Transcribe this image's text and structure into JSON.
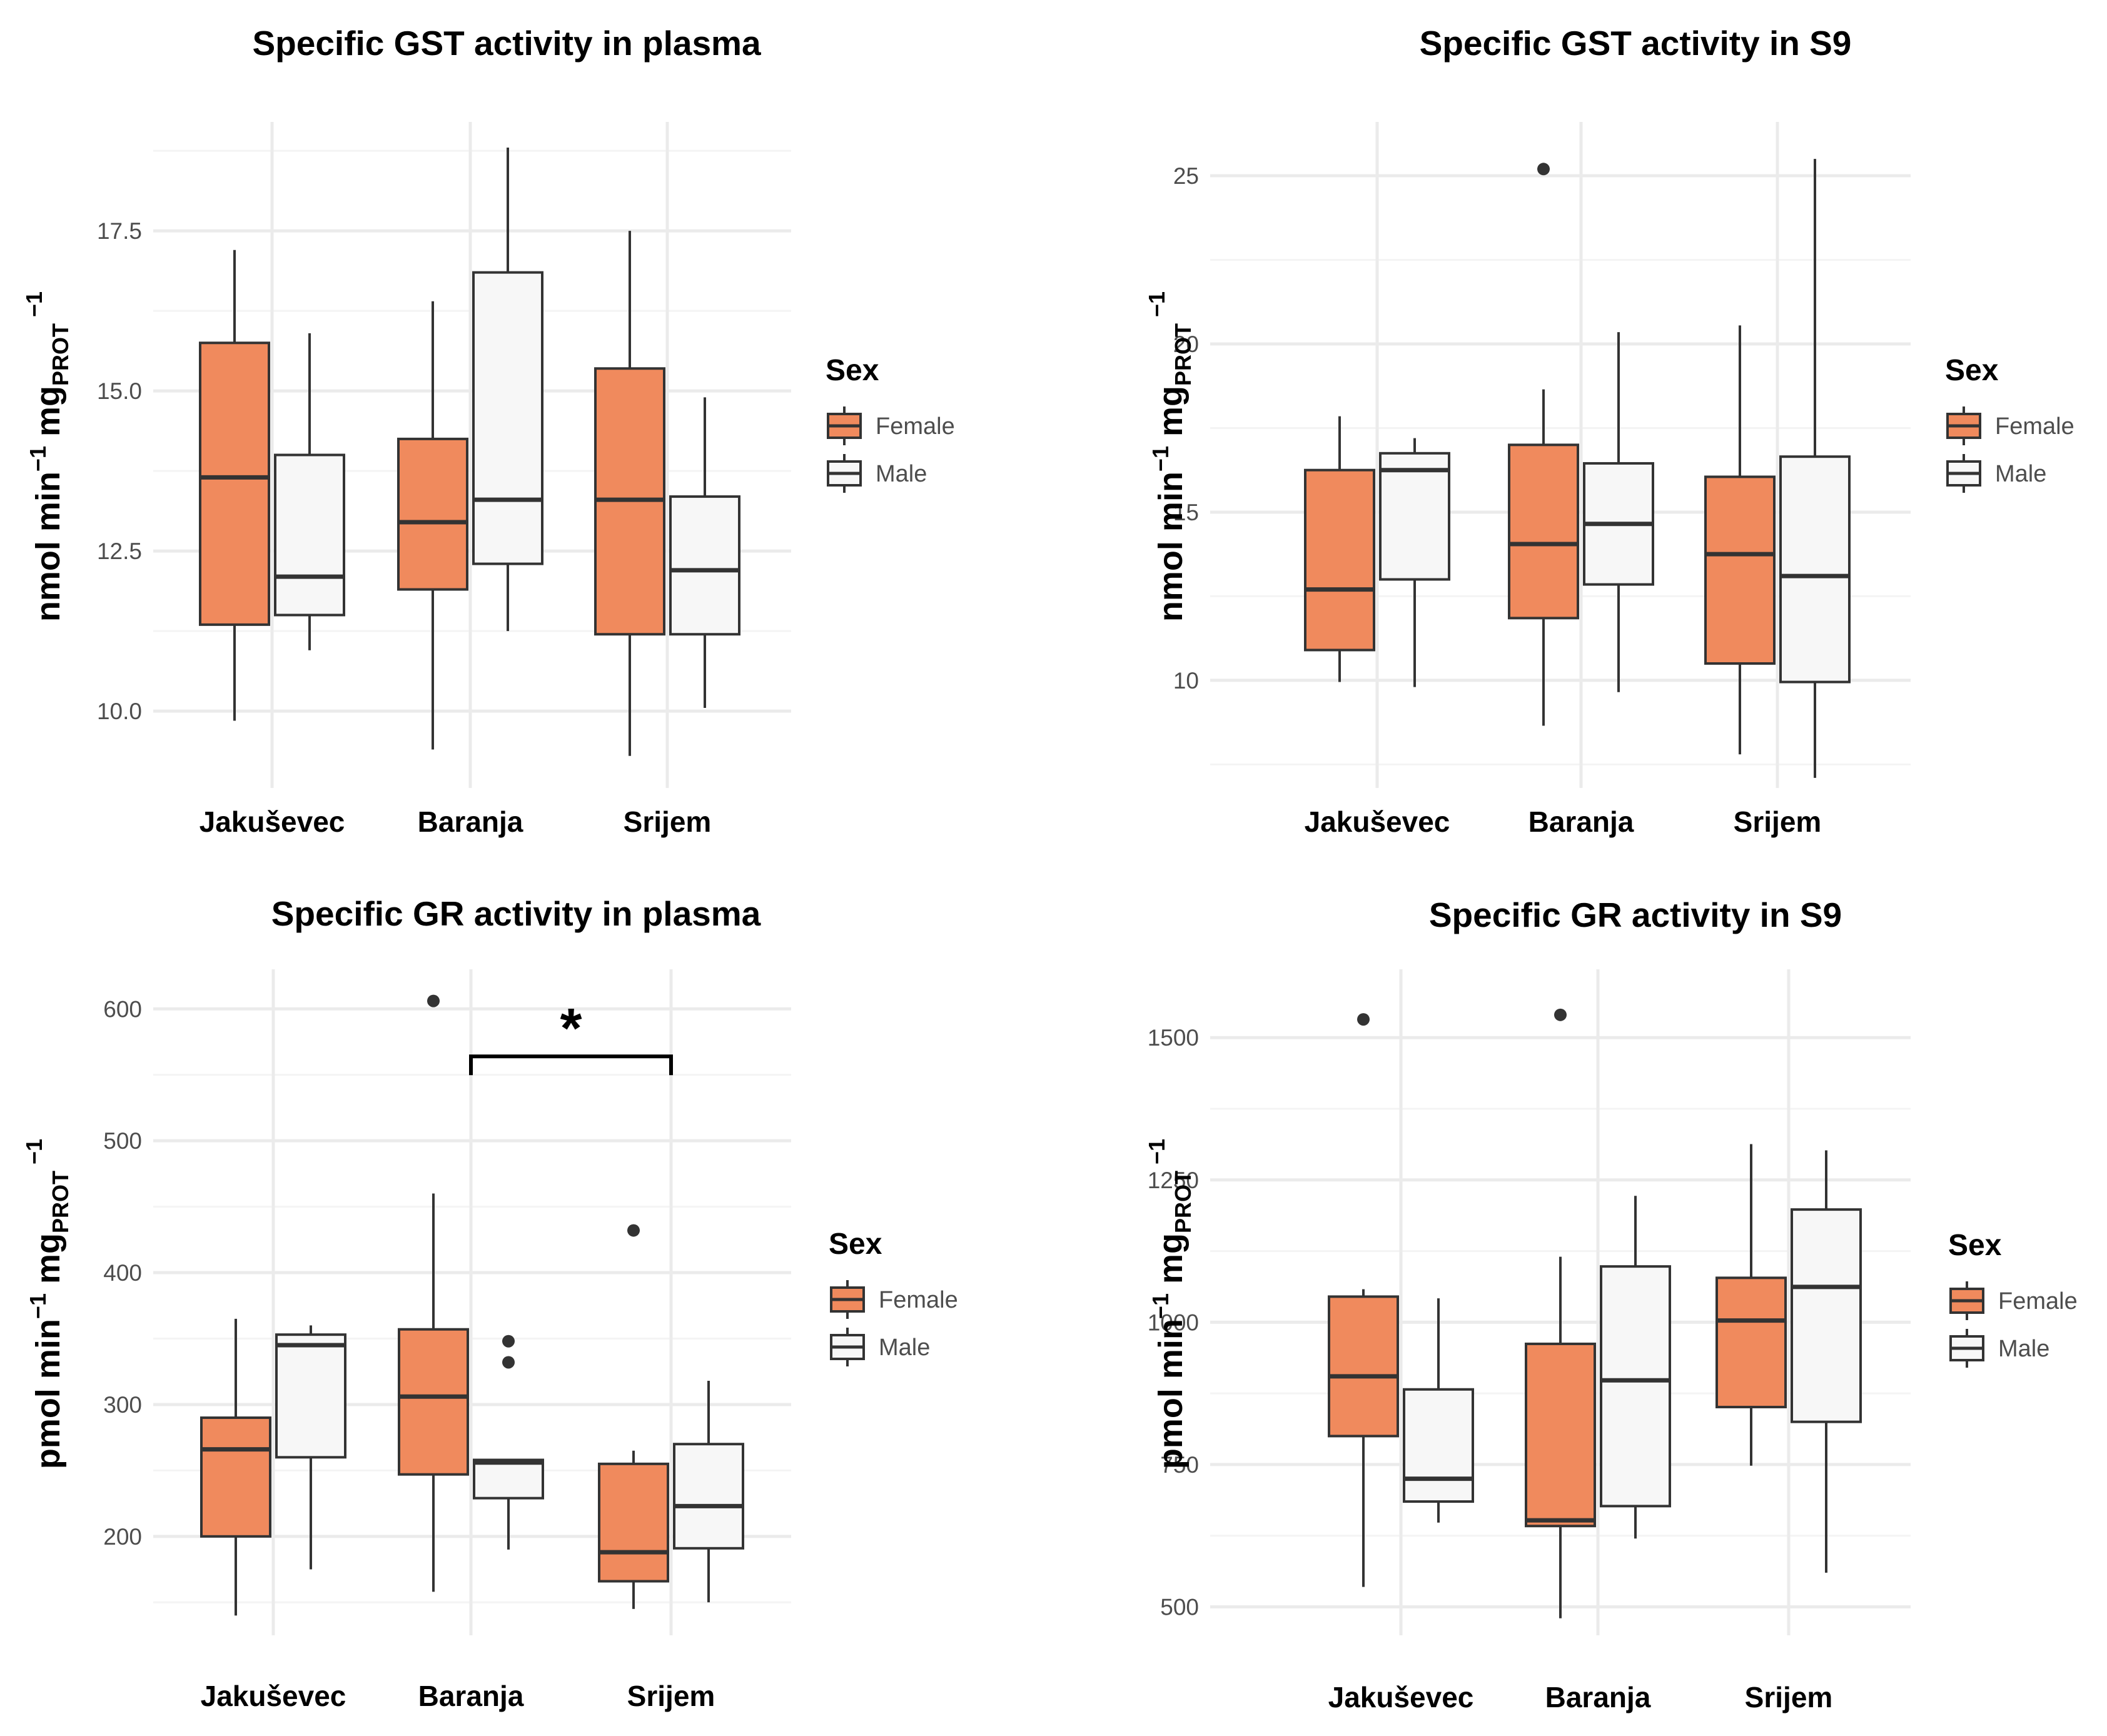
{
  "figure": {
    "legend_title": "Sex",
    "legend_items": [
      {
        "label": "Female",
        "fill": "#F08A5D"
      },
      {
        "label": "Male",
        "fill": "#F7F7F7"
      }
    ]
  },
  "colors": {
    "female": "#F08A5D",
    "male": "#F7F7F7",
    "stroke": "#333333",
    "grid_major": "#EBEBEB",
    "grid_minor": "#F4F4F4",
    "text": "#000000",
    "tick_text": "#4D4D4D"
  },
  "chart_data": [
    {
      "type": "boxplot",
      "title": "Specific GST activity in plasma",
      "ylabel_parts": {
        "base": "nmol min",
        "exp1": "−1",
        "mid": " mg",
        "sub": "PROT",
        "exp2": " −1"
      },
      "ylim": [
        8.8,
        19.2
      ],
      "yticks": [
        10.0,
        12.5,
        15.0,
        17.5
      ],
      "ytick_labels": [
        "10.0",
        "12.5",
        "15.0",
        "17.5"
      ],
      "categories": [
        "Jakuševec",
        "Baranja",
        "Srijem"
      ],
      "series": [
        {
          "name": "Female",
          "boxes": [
            {
              "min": 9.85,
              "q1": 11.35,
              "median": 13.65,
              "q3": 15.75,
              "max": 17.2,
              "outliers": []
            },
            {
              "min": 9.4,
              "q1": 11.9,
              "median": 12.95,
              "q3": 14.25,
              "max": 16.4,
              "outliers": []
            },
            {
              "min": 9.3,
              "q1": 11.2,
              "median": 13.3,
              "q3": 15.35,
              "max": 17.5,
              "outliers": []
            }
          ]
        },
        {
          "name": "Male",
          "boxes": [
            {
              "min": 10.95,
              "q1": 11.5,
              "median": 12.1,
              "q3": 14.0,
              "max": 15.9,
              "outliers": []
            },
            {
              "min": 11.25,
              "q1": 12.3,
              "median": 13.3,
              "q3": 16.85,
              "max": 18.8,
              "outliers": []
            },
            {
              "min": 10.05,
              "q1": 11.2,
              "median": 12.2,
              "q3": 13.35,
              "max": 14.9,
              "outliers": []
            }
          ]
        }
      ],
      "annotation": null
    },
    {
      "type": "boxplot",
      "title": "Specific GST activity in S9",
      "ylabel_parts": {
        "base": "nmol min",
        "exp1": "−1",
        "mid": " mg",
        "sub": "PROT",
        "exp2": " −1"
      },
      "ylim": [
        6.8,
        26.6
      ],
      "yticks": [
        10,
        15,
        20,
        25
      ],
      "ytick_labels": [
        "10",
        "15",
        "20",
        "25"
      ],
      "categories": [
        "Jakuševec",
        "Baranja",
        "Srijem"
      ],
      "series": [
        {
          "name": "Female",
          "boxes": [
            {
              "min": 9.95,
              "q1": 10.9,
              "median": 12.7,
              "q3": 16.25,
              "max": 17.85,
              "outliers": []
            },
            {
              "min": 8.65,
              "q1": 11.85,
              "median": 14.05,
              "q3": 17.0,
              "max": 18.65,
              "outliers": [
                25.2
              ]
            },
            {
              "min": 7.8,
              "q1": 10.5,
              "median": 13.75,
              "q3": 16.05,
              "max": 20.55,
              "outliers": []
            }
          ]
        },
        {
          "name": "Male",
          "boxes": [
            {
              "min": 9.8,
              "q1": 13.0,
              "median": 16.25,
              "q3": 16.75,
              "max": 17.2,
              "outliers": []
            },
            {
              "min": 9.65,
              "q1": 12.85,
              "median": 14.65,
              "q3": 16.45,
              "max": 20.35,
              "outliers": []
            },
            {
              "min": 7.1,
              "q1": 9.95,
              "median": 13.1,
              "q3": 16.65,
              "max": 25.5,
              "outliers": []
            }
          ]
        }
      ],
      "annotation": null
    },
    {
      "type": "boxplot",
      "title": "Specific GR activity in plasma",
      "ylabel_parts": {
        "base": "pmol min",
        "exp1": "−1",
        "mid": " mg",
        "sub": "PROT",
        "exp2": " −1"
      },
      "ylim": [
        125,
        630
      ],
      "yticks": [
        200,
        300,
        400,
        500,
        600
      ],
      "ytick_labels": [
        "200",
        "300",
        "400",
        "500",
        "600"
      ],
      "categories": [
        "Jakuševec",
        "Baranja",
        "Srijem"
      ],
      "series": [
        {
          "name": "Female",
          "boxes": [
            {
              "min": 140,
              "q1": 200,
              "median": 266,
              "q3": 290,
              "max": 365,
              "outliers": []
            },
            {
              "min": 158,
              "q1": 247,
              "median": 306,
              "q3": 357,
              "max": 460,
              "outliers": [
                606
              ]
            },
            {
              "min": 145,
              "q1": 166,
              "median": 188,
              "q3": 255,
              "max": 265,
              "outliers": [
                432
              ]
            }
          ]
        },
        {
          "name": "Male",
          "boxes": [
            {
              "min": 175,
              "q1": 260,
              "median": 345,
              "q3": 353,
              "max": 360,
              "outliers": []
            },
            {
              "min": 190,
              "q1": 229,
              "median": 256,
              "q3": 258,
              "max": 258,
              "outliers": [
                332,
                348
              ]
            },
            {
              "min": 150,
              "q1": 191,
              "median": 223,
              "q3": 270,
              "max": 318,
              "outliers": []
            }
          ]
        }
      ],
      "annotation": {
        "text": "*",
        "from_category": 1,
        "to_category": 2,
        "y": 564
      }
    },
    {
      "type": "boxplot",
      "title": "Specific GR activity in S9",
      "ylabel_parts": {
        "base": "pmol min",
        "exp1": "−1",
        "mid": " mg",
        "sub": "PROT",
        "exp2": " −1"
      },
      "ylim": [
        450,
        1620
      ],
      "yticks": [
        500,
        750,
        1000,
        1250,
        1500
      ],
      "ytick_labels": [
        "500",
        "750",
        "1000",
        "1250",
        "1500"
      ],
      "categories": [
        "Jakuševec",
        "Baranja",
        "Srijem"
      ],
      "series": [
        {
          "name": "Female",
          "boxes": [
            {
              "min": 535,
              "q1": 800,
              "median": 905,
              "q3": 1045,
              "max": 1058,
              "outliers": [
                1532
              ]
            },
            {
              "min": 480,
              "q1": 642,
              "median": 652,
              "q3": 962,
              "max": 1115,
              "outliers": [
                1540
              ]
            },
            {
              "min": 748,
              "q1": 851,
              "median": 1003,
              "q3": 1078,
              "max": 1313,
              "outliers": []
            }
          ]
        },
        {
          "name": "Male",
          "boxes": [
            {
              "min": 648,
              "q1": 685,
              "median": 725,
              "q3": 882,
              "max": 1042,
              "outliers": []
            },
            {
              "min": 620,
              "q1": 677,
              "median": 898,
              "q3": 1098,
              "max": 1222,
              "outliers": []
            },
            {
              "min": 560,
              "q1": 825,
              "median": 1062,
              "q3": 1198,
              "max": 1302,
              "outliers": []
            }
          ]
        }
      ],
      "annotation": null
    }
  ]
}
